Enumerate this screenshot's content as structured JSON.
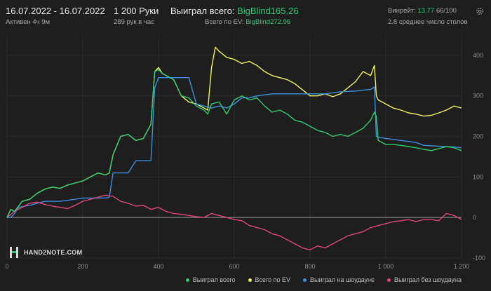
{
  "header": {
    "date_range": "16.07.2022 - 16.07.2022",
    "active_time": "Активен 4ч 9м",
    "hands": "1 200 Руки",
    "hands_per_hour": "289 рук в час",
    "won_total_label": "Выиграл всего:",
    "won_total_value": "BigBlind165.26",
    "ev_total_label": "Всего по EV:",
    "ev_total_value": "BigBlind272.96",
    "winrate_label": "Винрейт:",
    "winrate_value": "13.77",
    "winrate_hands": "66/100",
    "avg_tables": "2.8 среднее число столов"
  },
  "icons": {
    "settings": "gear-icon",
    "logo": "hand2note-logo"
  },
  "logo_text": "HAND2NOTE.COM",
  "colors": {
    "won_total": "#2ecc71",
    "ev_total": "#f2f25a",
    "showdown": "#3d8fe0",
    "non_showdown": "#e0467a",
    "accent_green": "#2ecc71"
  },
  "chart_data": {
    "type": "line",
    "title": "",
    "xlabel": "",
    "ylabel": "",
    "xlim": [
      0,
      1200
    ],
    "ylim": [
      -100,
      450
    ],
    "x_ticks": [
      0,
      200,
      400,
      600,
      800,
      1000,
      1200
    ],
    "x_tick_labels": [
      "0",
      "200",
      "400",
      "600",
      "800",
      "1 000",
      "1 200"
    ],
    "y_ticks": [
      -100,
      0,
      100,
      200,
      300,
      400
    ],
    "y_tick_labels": [
      "-100",
      "0",
      "100",
      "200",
      "300",
      "400"
    ],
    "grid": true,
    "legend_position": "bottom-right",
    "series": [
      {
        "name": "Выиграл всего",
        "color": "#2ecc71",
        "x": [
          0,
          10,
          20,
          40,
          60,
          80,
          100,
          120,
          140,
          160,
          180,
          200,
          220,
          240,
          260,
          270,
          280,
          300,
          320,
          340,
          360,
          380,
          390,
          400,
          410,
          420,
          440,
          460,
          480,
          500,
          520,
          530,
          540,
          560,
          580,
          600,
          620,
          640,
          660,
          680,
          700,
          720,
          740,
          760,
          780,
          800,
          820,
          840,
          860,
          880,
          900,
          920,
          940,
          950,
          960,
          970,
          975,
          980,
          1000,
          1020,
          1040,
          1060,
          1080,
          1100,
          1120,
          1140,
          1160,
          1180,
          1200
        ],
        "y": [
          0,
          20,
          15,
          40,
          45,
          60,
          70,
          75,
          72,
          80,
          85,
          90,
          100,
          110,
          105,
          110,
          155,
          200,
          205,
          190,
          195,
          230,
          360,
          365,
          355,
          350,
          340,
          300,
          295,
          275,
          265,
          255,
          280,
          285,
          255,
          290,
          300,
          290,
          295,
          275,
          260,
          265,
          255,
          240,
          235,
          225,
          215,
          210,
          200,
          205,
          200,
          210,
          220,
          230,
          240,
          260,
          250,
          190,
          180,
          180,
          178,
          175,
          172,
          168,
          165,
          170,
          175,
          172,
          165
        ]
      },
      {
        "name": "Всего по EV",
        "color": "#f2f25a",
        "x": [
          0,
          10,
          20,
          40,
          60,
          80,
          100,
          120,
          140,
          160,
          180,
          200,
          220,
          240,
          260,
          270,
          280,
          300,
          320,
          340,
          360,
          380,
          390,
          400,
          410,
          420,
          440,
          460,
          480,
          500,
          520,
          530,
          540,
          550,
          560,
          580,
          600,
          620,
          640,
          660,
          680,
          700,
          720,
          740,
          760,
          780,
          800,
          820,
          840,
          860,
          880,
          900,
          920,
          940,
          950,
          960,
          970,
          975,
          980,
          1000,
          1020,
          1040,
          1060,
          1080,
          1100,
          1120,
          1140,
          1160,
          1180,
          1200
        ],
        "y": [
          0,
          20,
          15,
          40,
          45,
          60,
          70,
          75,
          72,
          80,
          85,
          90,
          100,
          110,
          105,
          110,
          155,
          200,
          205,
          190,
          195,
          230,
          360,
          370,
          355,
          350,
          340,
          300,
          285,
          280,
          270,
          265,
          370,
          420,
          410,
          395,
          390,
          380,
          385,
          375,
          360,
          350,
          345,
          340,
          330,
          315,
          300,
          300,
          305,
          298,
          305,
          320,
          335,
          360,
          355,
          350,
          375,
          300,
          290,
          280,
          270,
          265,
          258,
          255,
          250,
          252,
          258,
          265,
          275,
          270
        ]
      },
      {
        "name": "Выиграл на шоудауне",
        "color": "#3d8fe0",
        "x": [
          0,
          10,
          20,
          30,
          60,
          100,
          140,
          180,
          200,
          240,
          260,
          270,
          280,
          300,
          320,
          340,
          360,
          380,
          390,
          400,
          420,
          450,
          480,
          500,
          520,
          540,
          560,
          580,
          600,
          620,
          640,
          660,
          700,
          740,
          780,
          800,
          840,
          880,
          920,
          940,
          960,
          970,
          975,
          980,
          1000,
          1040,
          1080,
          1100,
          1140,
          1180,
          1200
        ],
        "y": [
          0,
          0,
          10,
          25,
          30,
          40,
          40,
          45,
          48,
          48,
          48,
          50,
          110,
          110,
          110,
          140,
          140,
          140,
          320,
          345,
          345,
          345,
          345,
          280,
          275,
          270,
          275,
          270,
          280,
          295,
          295,
          300,
          305,
          305,
          305,
          305,
          305,
          310,
          312,
          314,
          316,
          322,
          200,
          198,
          195,
          190,
          185,
          178,
          176,
          174,
          172
        ]
      },
      {
        "name": "Выиграл без шоудауна",
        "color": "#e0467a",
        "x": [
          0,
          20,
          40,
          60,
          80,
          100,
          120,
          140,
          160,
          180,
          200,
          220,
          240,
          260,
          280,
          300,
          320,
          340,
          360,
          380,
          400,
          420,
          440,
          460,
          480,
          500,
          520,
          540,
          560,
          580,
          600,
          620,
          640,
          660,
          680,
          700,
          720,
          740,
          760,
          780,
          800,
          820,
          840,
          860,
          880,
          900,
          920,
          940,
          960,
          980,
          1000,
          1020,
          1040,
          1060,
          1080,
          1100,
          1120,
          1140,
          1160,
          1180,
          1200
        ],
        "y": [
          0,
          15,
          25,
          35,
          38,
          32,
          28,
          25,
          22,
          30,
          40,
          45,
          50,
          55,
          52,
          40,
          35,
          28,
          30,
          20,
          25,
          15,
          10,
          8,
          5,
          2,
          0,
          10,
          5,
          0,
          -5,
          -8,
          -20,
          -25,
          -30,
          -40,
          -45,
          -55,
          -65,
          -75,
          -80,
          -70,
          -75,
          -65,
          -55,
          -45,
          -40,
          -35,
          -25,
          -20,
          -15,
          -10,
          -8,
          -5,
          -10,
          -5,
          -5,
          -8,
          10,
          5,
          -5
        ]
      }
    ]
  }
}
